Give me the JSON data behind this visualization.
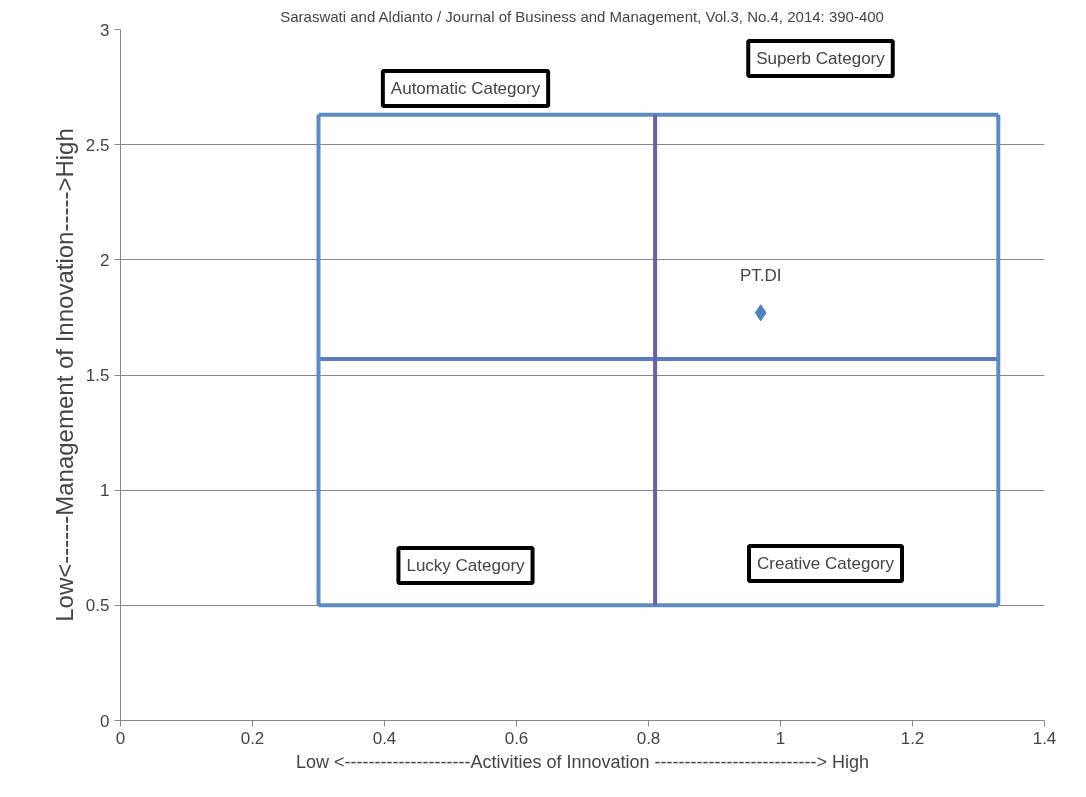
{
  "chart_data": {
    "type": "scatter",
    "xlabel": "Low <---------------------Activities of Innovation ---------------------------> High",
    "ylabel": "Low<------Management of Innovation----->High",
    "xlim": [
      0,
      1.4
    ],
    "xticks": [
      0,
      0.2,
      0.4,
      0.6,
      0.8,
      1,
      1.2,
      1.4
    ],
    "ylim": [
      0,
      3
    ],
    "yticks": [
      0,
      0.5,
      1,
      1.5,
      2,
      2.5,
      3
    ],
    "grid": "y",
    "series": [
      {
        "type": "line",
        "color": "#5b8cc4",
        "x": [
          0.3,
          1.33
        ],
        "values": [
          0.5,
          0.5
        ]
      },
      {
        "type": "line",
        "color": "#5b8cc4",
        "x": [
          0.3,
          1.33
        ],
        "values": [
          2.63,
          2.63
        ]
      },
      {
        "type": "line",
        "color": "#5b7cc0",
        "x": [
          0.3,
          1.33
        ],
        "values": [
          1.57,
          1.57
        ]
      },
      {
        "type": "line",
        "color": "#5b8cc4",
        "x": [
          0.3,
          0.3
        ],
        "values": [
          0.5,
          2.63
        ]
      },
      {
        "type": "line",
        "color": "#6a5fa8",
        "x": [
          0.81,
          0.81
        ],
        "values": [
          0.5,
          2.63
        ]
      },
      {
        "type": "line",
        "color": "#5b8cc4",
        "x": [
          1.33,
          1.33
        ],
        "values": [
          0.5,
          2.63
        ]
      },
      {
        "name": "PT.DI",
        "color": "#4f81bd",
        "marker": "diamond",
        "x": [
          0.97
        ],
        "values": [
          1.77
        ]
      }
    ],
    "annotations": [
      "Saraswati and Aldianto / Journal of Business and Management, Vol.3, No.4, 2014: 390-400",
      "Automatic Category",
      "Superb Category",
      "Lucky Category",
      "Creative Category"
    ]
  }
}
